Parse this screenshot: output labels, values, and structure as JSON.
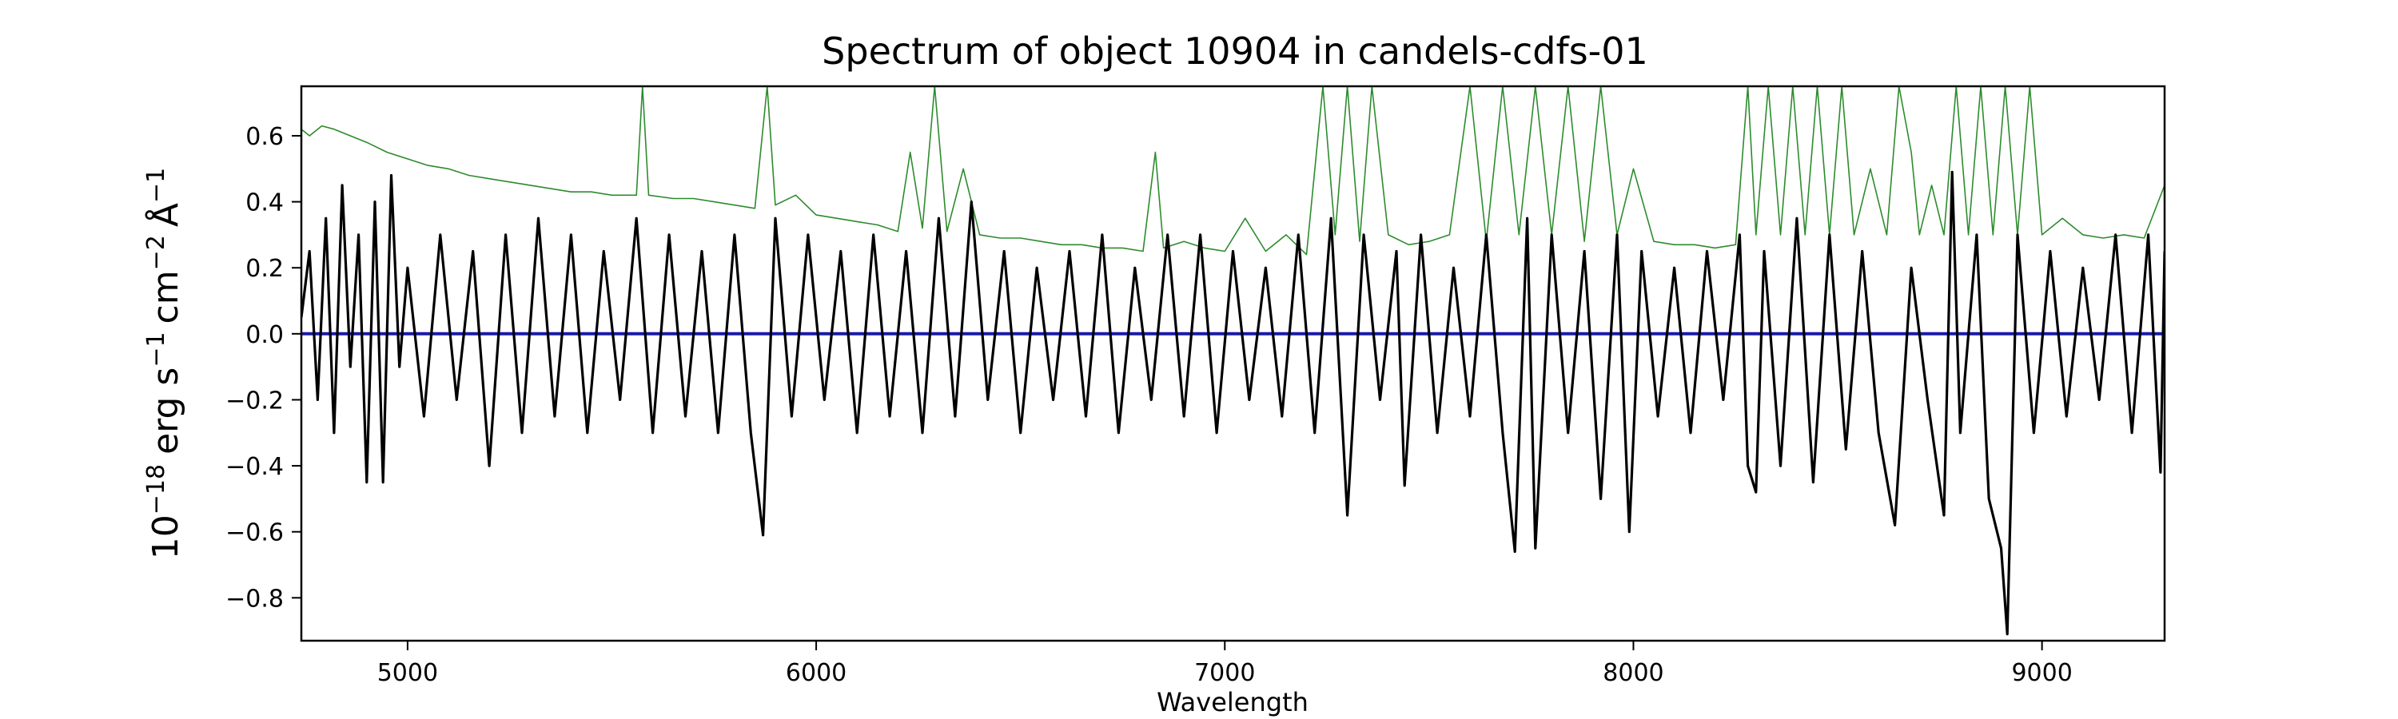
{
  "chart_data": {
    "type": "line",
    "title": "Spectrum of object 10904 in candels-cdfs-01",
    "xlabel": "Wavelength",
    "ylabel": {
      "base": "10",
      "base_exp": "−18",
      "unit1": "erg s",
      "unit1_exp": "−1",
      "unit2": "cm",
      "unit2_exp": "−2",
      "unit3": "Å",
      "unit3_exp": "−1"
    },
    "xlim": [
      4740,
      9300
    ],
    "ylim": [
      -0.93,
      0.75
    ],
    "x_ticks": [
      5000,
      6000,
      7000,
      8000,
      9000
    ],
    "x_tick_labels": [
      "5000",
      "6000",
      "7000",
      "8000",
      "9000"
    ],
    "y_ticks": [
      0.6,
      0.4,
      0.2,
      0.0,
      -0.2,
      -0.4,
      -0.6,
      -0.8
    ],
    "y_tick_labels": [
      "0.6",
      "0.4",
      "0.2",
      "0.0",
      "−0.2",
      "−0.4",
      "−0.6",
      "−0.8"
    ],
    "grid": false,
    "legend": "none",
    "series": [
      {
        "role": "flux",
        "color": "#000000",
        "points": [
          [
            4740,
            0.05
          ],
          [
            4760,
            0.25
          ],
          [
            4780,
            -0.2
          ],
          [
            4800,
            0.35
          ],
          [
            4820,
            -0.3
          ],
          [
            4840,
            0.45
          ],
          [
            4860,
            -0.1
          ],
          [
            4880,
            0.3
          ],
          [
            4900,
            -0.45
          ],
          [
            4920,
            0.4
          ],
          [
            4940,
            -0.45
          ],
          [
            4960,
            0.48
          ],
          [
            4980,
            -0.1
          ],
          [
            5000,
            0.2
          ],
          [
            5040,
            -0.25
          ],
          [
            5080,
            0.3
          ],
          [
            5120,
            -0.2
          ],
          [
            5160,
            0.25
          ],
          [
            5200,
            -0.4
          ],
          [
            5240,
            0.3
          ],
          [
            5280,
            -0.3
          ],
          [
            5320,
            0.35
          ],
          [
            5360,
            -0.25
          ],
          [
            5400,
            0.3
          ],
          [
            5440,
            -0.3
          ],
          [
            5480,
            0.25
          ],
          [
            5520,
            -0.2
          ],
          [
            5560,
            0.35
          ],
          [
            5600,
            -0.3
          ],
          [
            5640,
            0.3
          ],
          [
            5680,
            -0.25
          ],
          [
            5720,
            0.25
          ],
          [
            5760,
            -0.3
          ],
          [
            5800,
            0.3
          ],
          [
            5840,
            -0.3
          ],
          [
            5870,
            -0.61
          ],
          [
            5900,
            0.35
          ],
          [
            5940,
            -0.25
          ],
          [
            5980,
            0.3
          ],
          [
            6020,
            -0.2
          ],
          [
            6060,
            0.25
          ],
          [
            6100,
            -0.3
          ],
          [
            6140,
            0.3
          ],
          [
            6180,
            -0.25
          ],
          [
            6220,
            0.25
          ],
          [
            6260,
            -0.3
          ],
          [
            6300,
            0.35
          ],
          [
            6340,
            -0.25
          ],
          [
            6380,
            0.4
          ],
          [
            6420,
            -0.2
          ],
          [
            6460,
            0.25
          ],
          [
            6500,
            -0.3
          ],
          [
            6540,
            0.2
          ],
          [
            6580,
            -0.2
          ],
          [
            6620,
            0.25
          ],
          [
            6660,
            -0.25
          ],
          [
            6700,
            0.3
          ],
          [
            6740,
            -0.3
          ],
          [
            6780,
            0.2
          ],
          [
            6820,
            -0.2
          ],
          [
            6860,
            0.3
          ],
          [
            6900,
            -0.25
          ],
          [
            6940,
            0.3
          ],
          [
            6980,
            -0.3
          ],
          [
            7020,
            0.25
          ],
          [
            7060,
            -0.2
          ],
          [
            7100,
            0.2
          ],
          [
            7140,
            -0.25
          ],
          [
            7180,
            0.3
          ],
          [
            7220,
            -0.3
          ],
          [
            7260,
            0.35
          ],
          [
            7300,
            -0.55
          ],
          [
            7340,
            0.3
          ],
          [
            7380,
            -0.2
          ],
          [
            7420,
            0.25
          ],
          [
            7440,
            -0.46
          ],
          [
            7480,
            0.3
          ],
          [
            7520,
            -0.3
          ],
          [
            7560,
            0.2
          ],
          [
            7600,
            -0.25
          ],
          [
            7640,
            0.3
          ],
          [
            7680,
            -0.3
          ],
          [
            7710,
            -0.66
          ],
          [
            7740,
            0.35
          ],
          [
            7760,
            -0.65
          ],
          [
            7800,
            0.3
          ],
          [
            7840,
            -0.3
          ],
          [
            7880,
            0.25
          ],
          [
            7920,
            -0.5
          ],
          [
            7960,
            0.3
          ],
          [
            7990,
            -0.6
          ],
          [
            8020,
            0.25
          ],
          [
            8060,
            -0.25
          ],
          [
            8100,
            0.2
          ],
          [
            8140,
            -0.3
          ],
          [
            8180,
            0.25
          ],
          [
            8220,
            -0.2
          ],
          [
            8260,
            0.3
          ],
          [
            8280,
            -0.4
          ],
          [
            8300,
            -0.48
          ],
          [
            8320,
            0.25
          ],
          [
            8360,
            -0.4
          ],
          [
            8400,
            0.35
          ],
          [
            8440,
            -0.45
          ],
          [
            8480,
            0.3
          ],
          [
            8520,
            -0.35
          ],
          [
            8560,
            0.25
          ],
          [
            8600,
            -0.3
          ],
          [
            8640,
            -0.58
          ],
          [
            8680,
            0.2
          ],
          [
            8720,
            -0.2
          ],
          [
            8760,
            -0.55
          ],
          [
            8780,
            0.49
          ],
          [
            8800,
            -0.3
          ],
          [
            8840,
            0.3
          ],
          [
            8870,
            -0.5
          ],
          [
            8900,
            -0.65
          ],
          [
            8915,
            -0.91
          ],
          [
            8940,
            0.3
          ],
          [
            8980,
            -0.3
          ],
          [
            9020,
            0.25
          ],
          [
            9060,
            -0.25
          ],
          [
            9100,
            0.2
          ],
          [
            9140,
            -0.2
          ],
          [
            9180,
            0.3
          ],
          [
            9220,
            -0.3
          ],
          [
            9260,
            0.3
          ],
          [
            9290,
            -0.42
          ],
          [
            9300,
            0.25
          ]
        ]
      },
      {
        "role": "error",
        "color": "#2e8b2e",
        "points": [
          [
            4740,
            0.62
          ],
          [
            4760,
            0.6
          ],
          [
            4790,
            0.63
          ],
          [
            4820,
            0.62
          ],
          [
            4860,
            0.6
          ],
          [
            4900,
            0.58
          ],
          [
            4950,
            0.55
          ],
          [
            5000,
            0.53
          ],
          [
            5050,
            0.51
          ],
          [
            5100,
            0.5
          ],
          [
            5150,
            0.48
          ],
          [
            5200,
            0.47
          ],
          [
            5250,
            0.46
          ],
          [
            5300,
            0.45
          ],
          [
            5350,
            0.44
          ],
          [
            5400,
            0.43
          ],
          [
            5450,
            0.43
          ],
          [
            5500,
            0.42
          ],
          [
            5560,
            0.42
          ],
          [
            5575,
            0.75
          ],
          [
            5590,
            0.42
          ],
          [
            5650,
            0.41
          ],
          [
            5700,
            0.41
          ],
          [
            5750,
            0.4
          ],
          [
            5800,
            0.39
          ],
          [
            5850,
            0.38
          ],
          [
            5880,
            0.75
          ],
          [
            5900,
            0.39
          ],
          [
            5950,
            0.42
          ],
          [
            6000,
            0.36
          ],
          [
            6050,
            0.35
          ],
          [
            6100,
            0.34
          ],
          [
            6150,
            0.33
          ],
          [
            6200,
            0.31
          ],
          [
            6230,
            0.55
          ],
          [
            6260,
            0.32
          ],
          [
            6290,
            0.75
          ],
          [
            6320,
            0.31
          ],
          [
            6360,
            0.5
          ],
          [
            6400,
            0.3
          ],
          [
            6450,
            0.29
          ],
          [
            6500,
            0.29
          ],
          [
            6550,
            0.28
          ],
          [
            6600,
            0.27
          ],
          [
            6650,
            0.27
          ],
          [
            6700,
            0.26
          ],
          [
            6750,
            0.26
          ],
          [
            6800,
            0.25
          ],
          [
            6830,
            0.55
          ],
          [
            6850,
            0.26
          ],
          [
            6900,
            0.28
          ],
          [
            6950,
            0.26
          ],
          [
            7000,
            0.25
          ],
          [
            7050,
            0.35
          ],
          [
            7100,
            0.25
          ],
          [
            7150,
            0.3
          ],
          [
            7200,
            0.24
          ],
          [
            7240,
            0.75
          ],
          [
            7270,
            0.3
          ],
          [
            7300,
            0.75
          ],
          [
            7330,
            0.28
          ],
          [
            7360,
            0.75
          ],
          [
            7400,
            0.3
          ],
          [
            7450,
            0.27
          ],
          [
            7500,
            0.28
          ],
          [
            7550,
            0.3
          ],
          [
            7600,
            0.75
          ],
          [
            7640,
            0.28
          ],
          [
            7680,
            0.75
          ],
          [
            7720,
            0.3
          ],
          [
            7760,
            0.75
          ],
          [
            7800,
            0.3
          ],
          [
            7840,
            0.75
          ],
          [
            7880,
            0.28
          ],
          [
            7920,
            0.75
          ],
          [
            7960,
            0.3
          ],
          [
            8000,
            0.5
          ],
          [
            8050,
            0.28
          ],
          [
            8100,
            0.27
          ],
          [
            8150,
            0.27
          ],
          [
            8200,
            0.26
          ],
          [
            8250,
            0.27
          ],
          [
            8280,
            0.75
          ],
          [
            8300,
            0.3
          ],
          [
            8330,
            0.75
          ],
          [
            8360,
            0.3
          ],
          [
            8390,
            0.75
          ],
          [
            8420,
            0.3
          ],
          [
            8450,
            0.75
          ],
          [
            8480,
            0.3
          ],
          [
            8510,
            0.75
          ],
          [
            8540,
            0.3
          ],
          [
            8580,
            0.5
          ],
          [
            8620,
            0.3
          ],
          [
            8650,
            0.75
          ],
          [
            8680,
            0.55
          ],
          [
            8700,
            0.3
          ],
          [
            8730,
            0.45
          ],
          [
            8760,
            0.3
          ],
          [
            8790,
            0.75
          ],
          [
            8820,
            0.3
          ],
          [
            8850,
            0.75
          ],
          [
            8880,
            0.3
          ],
          [
            8910,
            0.75
          ],
          [
            8940,
            0.3
          ],
          [
            8970,
            0.75
          ],
          [
            9000,
            0.3
          ],
          [
            9050,
            0.35
          ],
          [
            9100,
            0.3
          ],
          [
            9150,
            0.29
          ],
          [
            9200,
            0.3
          ],
          [
            9250,
            0.29
          ],
          [
            9300,
            0.45
          ]
        ]
      },
      {
        "role": "continuum",
        "color": "#1a1aa6",
        "points": [
          [
            4740,
            0.0
          ],
          [
            9300,
            0.0
          ]
        ]
      }
    ]
  }
}
